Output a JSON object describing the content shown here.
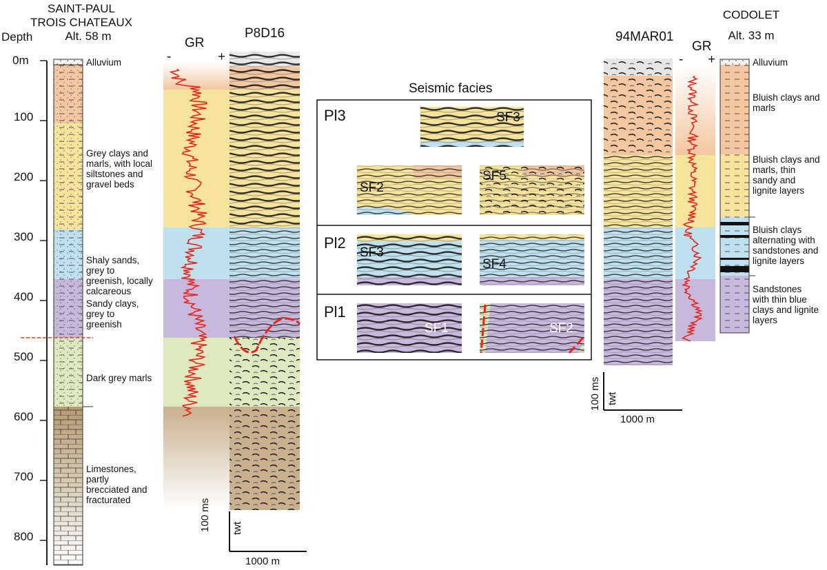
{
  "left_well": {
    "name_line1": "SAINT-PAUL",
    "name_line2": "TROIS CHATEAUX",
    "altitude": "Alt. 58 m",
    "depth_label": "Depth",
    "depth_ticks": [
      "0m",
      "100",
      "200",
      "300",
      "400",
      "500",
      "600",
      "700",
      "800"
    ],
    "lithology": [
      {
        "text": "Alluvium"
      },
      {
        "text": "Grey clays and\nmarls, with local\nsiltstones and\ngravel beds"
      },
      {
        "text": "Shaly sands,\ngrey to\ngreenish, locally\ncalcareous"
      },
      {
        "text": "Sandy clays,\ngrey to\ngreenish"
      },
      {
        "text": "Dark grey marls"
      },
      {
        "text": "Limestones,\npartly\nbrecciated and\nfracturated"
      }
    ]
  },
  "gr_left": {
    "label": "GR",
    "minus": "-",
    "plus": "+"
  },
  "seismic_left": {
    "name": "P8D16",
    "scale_time": "100 ms",
    "scale_twt": "twt",
    "scale_dist": "1000 m"
  },
  "facies_box": {
    "title": "Seismic facies",
    "rows": [
      {
        "unit": "Pl3",
        "samples": [
          "SF3",
          "SF2",
          "SF5"
        ]
      },
      {
        "unit": "Pl2",
        "samples": [
          "SF3",
          "SF4"
        ]
      },
      {
        "unit": "Pl1",
        "samples": [
          "SF1",
          "SF2"
        ]
      }
    ]
  },
  "seismic_right": {
    "name": "94MAR01",
    "scale_time": "100 ms",
    "scale_twt": "twt",
    "scale_dist": "1000 m"
  },
  "gr_right": {
    "label": "GR",
    "minus": "-",
    "plus": "+"
  },
  "right_well": {
    "name": "CODOLET",
    "altitude": "Alt. 33 m",
    "lithology": [
      {
        "text": "Alluvium"
      },
      {
        "text": "Bluish clays and\nmarls"
      },
      {
        "text": "Bluish clays and\nmarls, thin\nsandy and\nlignite layers"
      },
      {
        "text": "Bluish clays\nalternating with\nsandstones and\nlignite layers"
      },
      {
        "text": "Sandstones\nwith thin blue\nclays and lignite\nlayers"
      }
    ]
  },
  "colors": {
    "pl3_top": "#f3c7a0",
    "pl3": "#f7e49c",
    "pl2": "#bfe0ee",
    "pl1": "#c8b8dc",
    "miocene_marl": "#dfe9bf",
    "limestone": "#c9b08e",
    "gr_curve": "#e8241c"
  }
}
